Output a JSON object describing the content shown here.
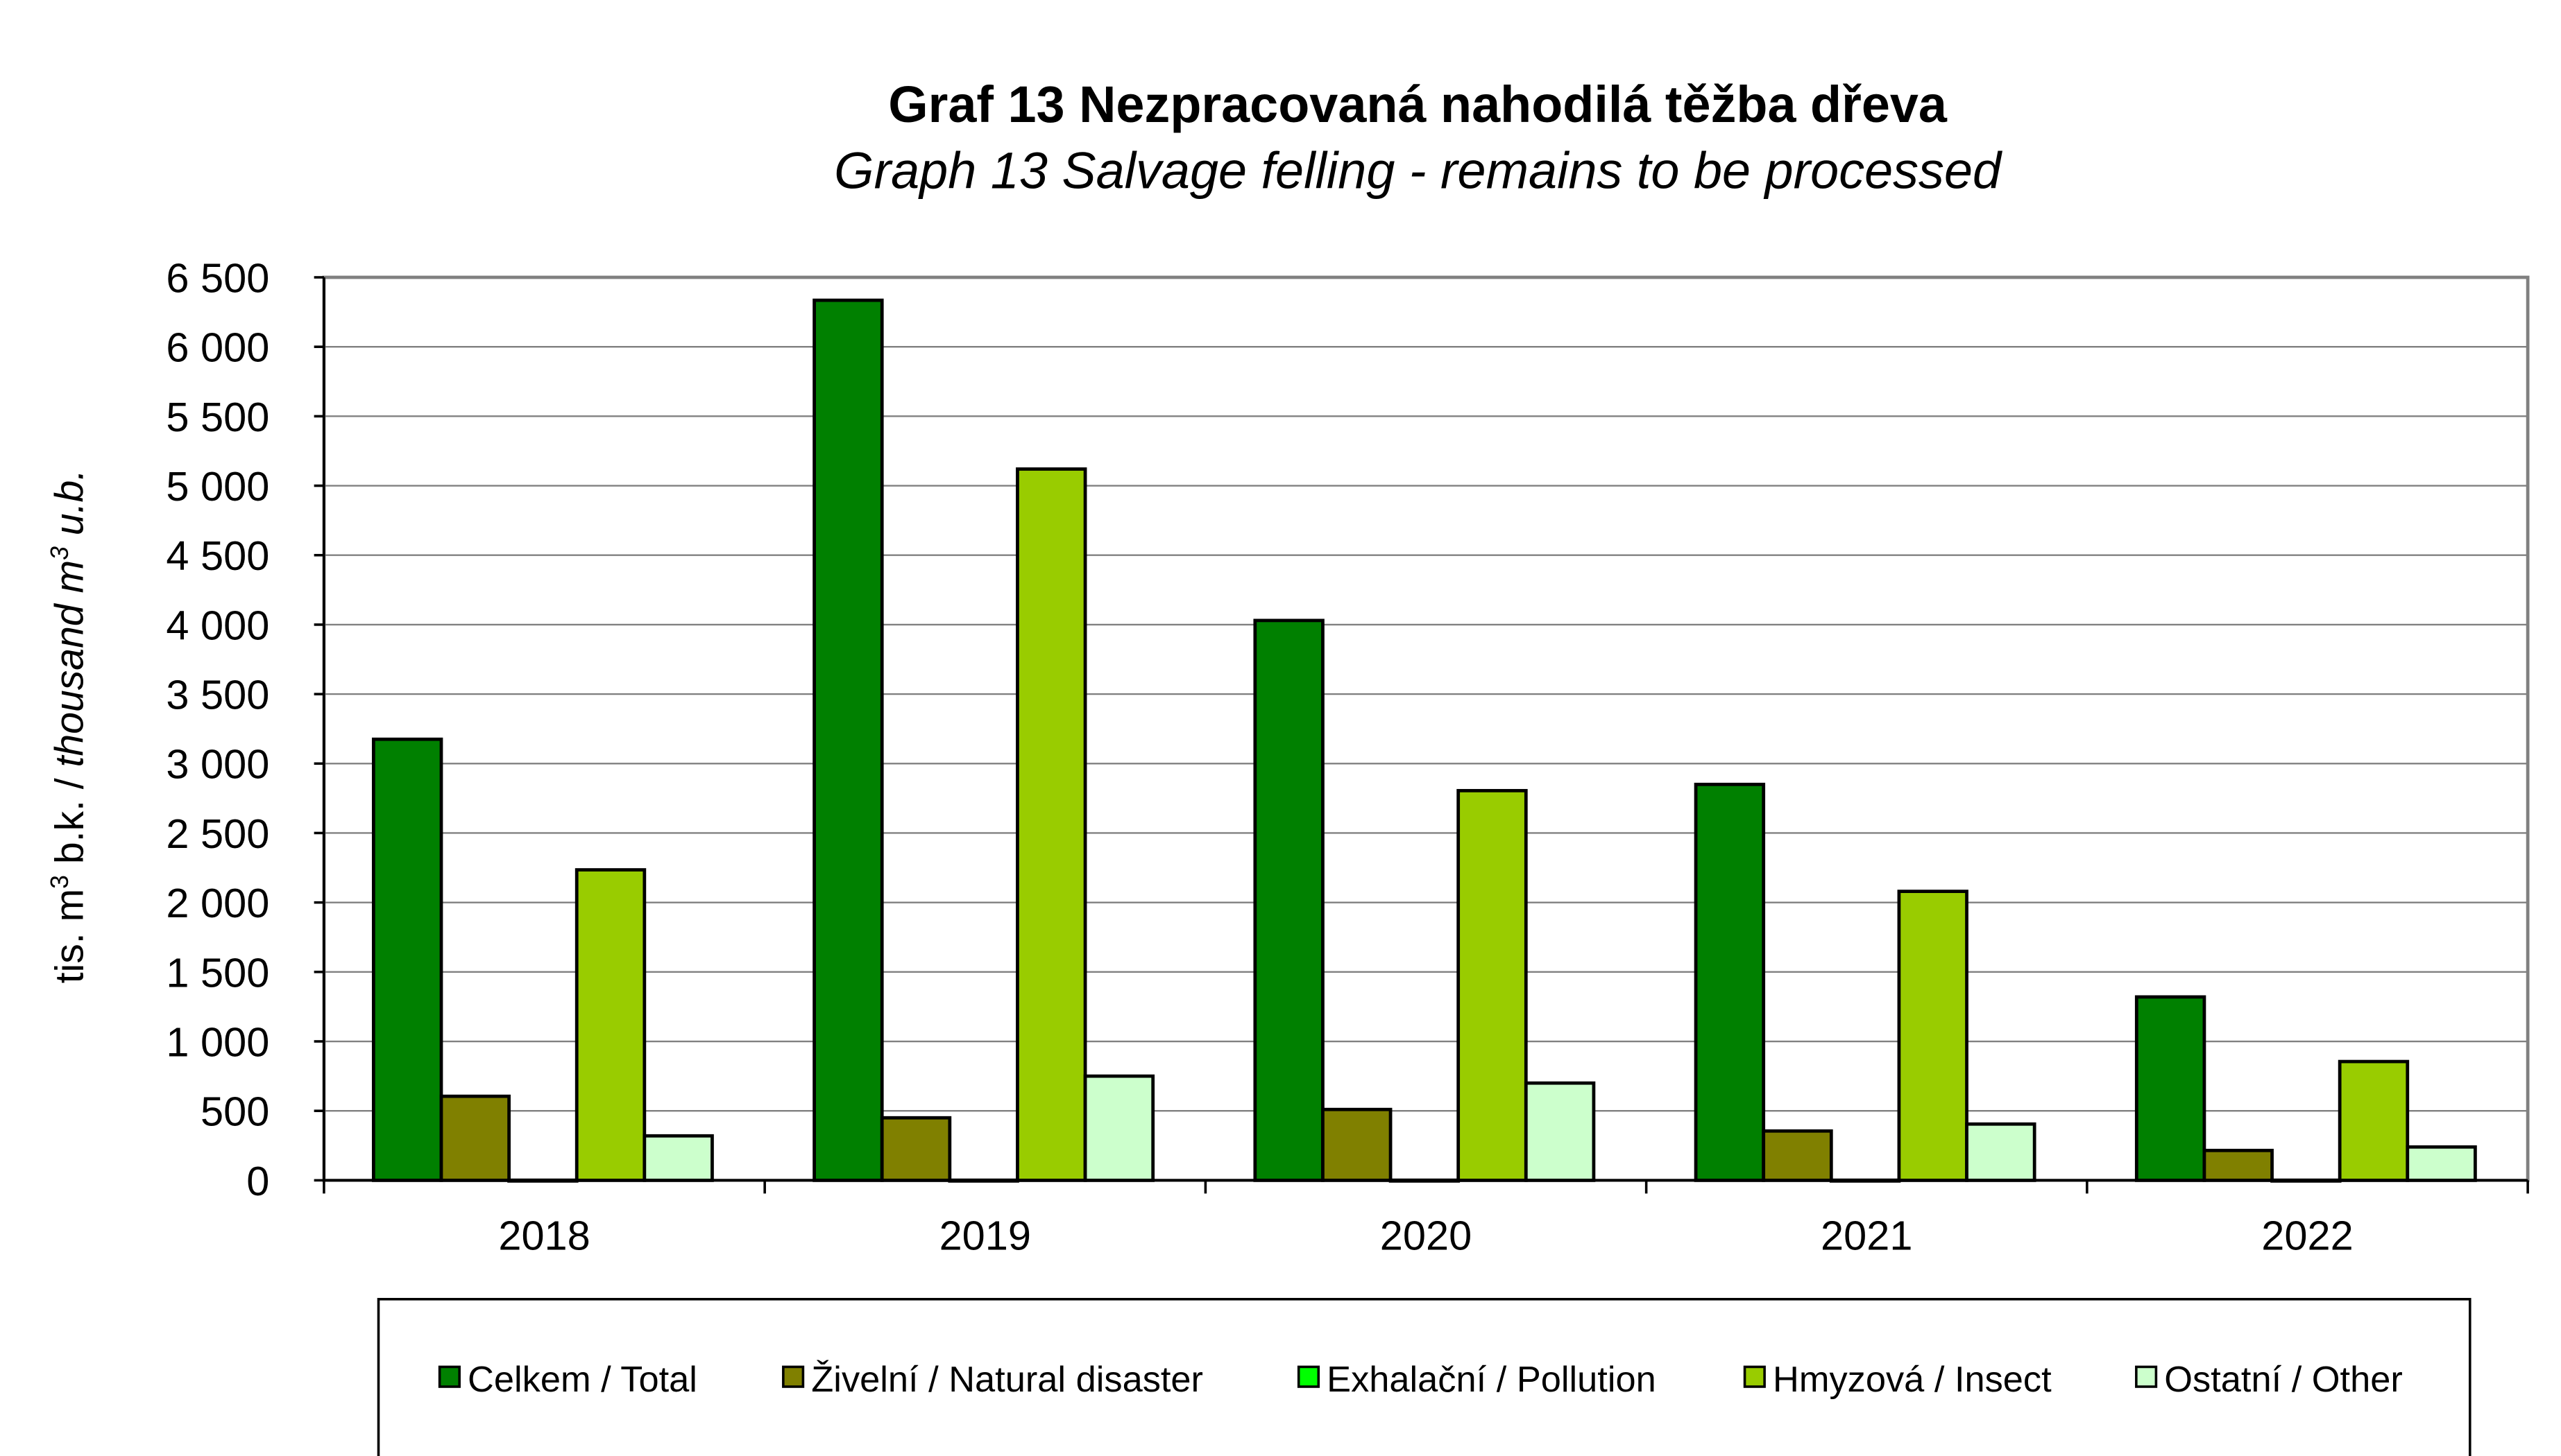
{
  "chart_data": {
    "type": "bar",
    "title": "Graf 13  Nezpracovaná nahodilá těžba dřeva",
    "subtitle": "Graph 13  Salvage felling - remains to be processed",
    "ylabel_prefix": "tis. m",
    "ylabel_sup1": "3",
    "ylabel_mid": " b.k. / ",
    "ylabel_italic": "thousand m",
    "ylabel_sup2": "3",
    "ylabel_suffix": " u.b.",
    "xlabel": "",
    "ylim": [
      0,
      6500
    ],
    "yticks": [
      0,
      500,
      1000,
      1500,
      2000,
      2500,
      3000,
      3500,
      4000,
      4500,
      5000,
      5500,
      6000,
      6500
    ],
    "ytick_labels": [
      "0",
      "500",
      "1 000",
      "1 500",
      "2 000",
      "2 500",
      "3 000",
      "3 500",
      "4 000",
      "4 500",
      "5 000",
      "5 500",
      "6 000",
      "6 500"
    ],
    "grid": true,
    "legend_position": "bottom",
    "categories": [
      "2018",
      "2019",
      "2020",
      "2021",
      "2022"
    ],
    "series": [
      {
        "name": "Celkem / Total",
        "color": "#008000",
        "values": [
          3175,
          6335,
          4030,
          2850,
          1320
        ]
      },
      {
        "name": "Živelní / Natural disaster",
        "color": "#808000",
        "values": [
          605,
          450,
          510,
          355,
          215
        ]
      },
      {
        "name": "Exhalační / Pollution",
        "color": "#00ff00",
        "values": [
          1,
          1,
          1,
          1,
          1
        ]
      },
      {
        "name": "Hmyzová / Insect",
        "color": "#99cc00",
        "values": [
          2235,
          5120,
          2805,
          2080,
          855
        ]
      },
      {
        "name": "Ostatní / Other",
        "color": "#ccffcc",
        "values": [
          320,
          750,
          700,
          405,
          240
        ]
      }
    ]
  }
}
